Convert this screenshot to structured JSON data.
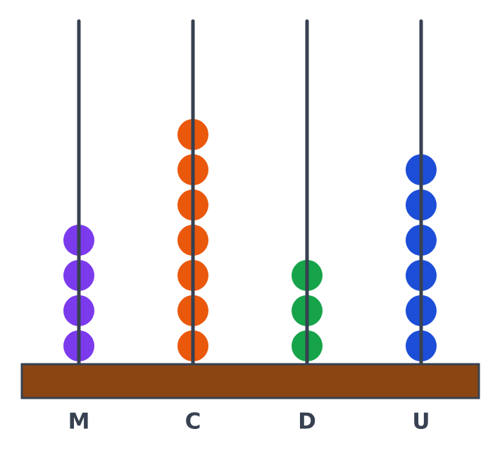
{
  "rods": [
    {
      "label": "M",
      "beads": 4,
      "color": "#7c3aed"
    },
    {
      "label": "C",
      "beads": 7,
      "color": "#ea580c"
    },
    {
      "label": "D",
      "beads": 3,
      "color": "#16a34a"
    },
    {
      "label": "U",
      "beads": 6,
      "color": "#1d4ed8"
    }
  ]
}
